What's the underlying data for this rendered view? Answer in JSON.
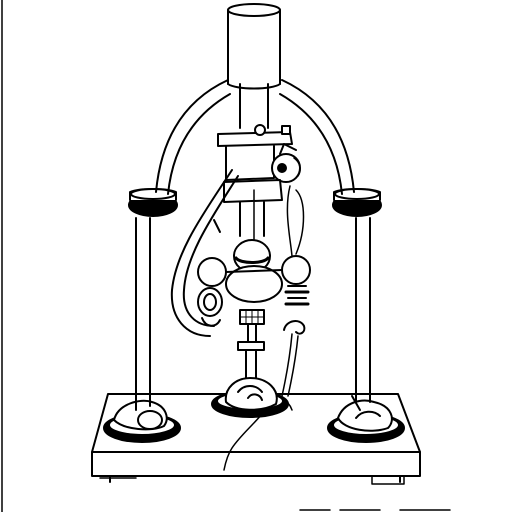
{
  "illustration": {
    "subject": "",
    "ink_color": "#000000",
    "paper_color": "#ffffff",
    "style": "black line drawing"
  }
}
